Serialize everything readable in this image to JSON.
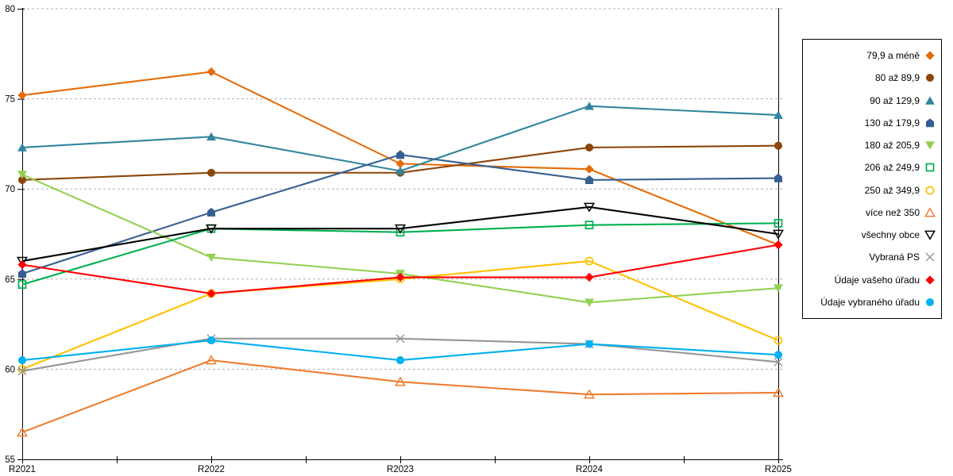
{
  "chart_data": {
    "type": "line",
    "title": "",
    "xlabel": "",
    "ylabel": "",
    "categories": [
      "R2021",
      "R2022",
      "R2023",
      "R2024",
      "R2025"
    ],
    "y_axis": {
      "min": 55,
      "max": 80,
      "tick_step": 5,
      "ticks": [
        55,
        60,
        65,
        70,
        75,
        80
      ],
      "grid": "dashed-horizontal"
    },
    "legend_position": "right",
    "series": [
      {
        "name": "79,9 a méně",
        "color": "#E36C09",
        "marker": "filled-diamond",
        "values": [
          75.2,
          76.5,
          71.4,
          71.1,
          66.9
        ]
      },
      {
        "name": "80 až 89,9",
        "color": "#8C4609",
        "marker": "filled-circle",
        "values": [
          70.5,
          70.9,
          70.9,
          72.3,
          72.4
        ]
      },
      {
        "name": "90 až 129,9",
        "color": "#31859C",
        "marker": "filled-triangle-up",
        "values": [
          72.3,
          72.9,
          71.0,
          74.6,
          74.1
        ]
      },
      {
        "name": "130 až 179,9",
        "color": "#365F91",
        "marker": "filled-pentagon",
        "values": [
          65.3,
          68.7,
          71.9,
          70.5,
          70.6
        ]
      },
      {
        "name": "180 až 205,9",
        "color": "#92D050",
        "marker": "filled-triangle-down",
        "values": [
          70.8,
          66.2,
          65.3,
          63.7,
          64.5
        ]
      },
      {
        "name": "206 až 249,9",
        "color": "#00B050",
        "marker": "open-square",
        "values": [
          64.7,
          67.8,
          67.6,
          68.0,
          68.1
        ]
      },
      {
        "name": "250 až 349,9",
        "color": "#FFC000",
        "marker": "open-circle",
        "values": [
          60.0,
          64.2,
          65.0,
          66.0,
          61.6
        ]
      },
      {
        "name": "více než 350",
        "color": "#ED7D31",
        "marker": "open-triangle-up",
        "values": [
          56.5,
          60.5,
          59.3,
          58.6,
          58.7
        ]
      },
      {
        "name": "všechny obce",
        "color": "#000000",
        "marker": "open-triangle-down",
        "values": [
          66.0,
          67.8,
          67.8,
          69.0,
          67.5
        ]
      },
      {
        "name": "Vybraná PS",
        "color": "#969696",
        "marker": "x-cross",
        "values": [
          59.9,
          61.7,
          61.7,
          61.4,
          60.4
        ]
      },
      {
        "name": "Údaje vašeho úřadu",
        "color": "#FF0000",
        "marker": "filled-diamond",
        "values": [
          65.8,
          64.2,
          65.1,
          65.1,
          66.9
        ]
      },
      {
        "name": "Údaje vybraného úřadu",
        "color": "#00B0F0",
        "marker": "filled-circle",
        "values": [
          60.5,
          61.6,
          60.5,
          61.4,
          60.8
        ]
      }
    ]
  },
  "colors": {
    "axis": "#000000",
    "gridline": "#b3b3b3",
    "background": "#ffffff",
    "legend_border": "#000000"
  }
}
